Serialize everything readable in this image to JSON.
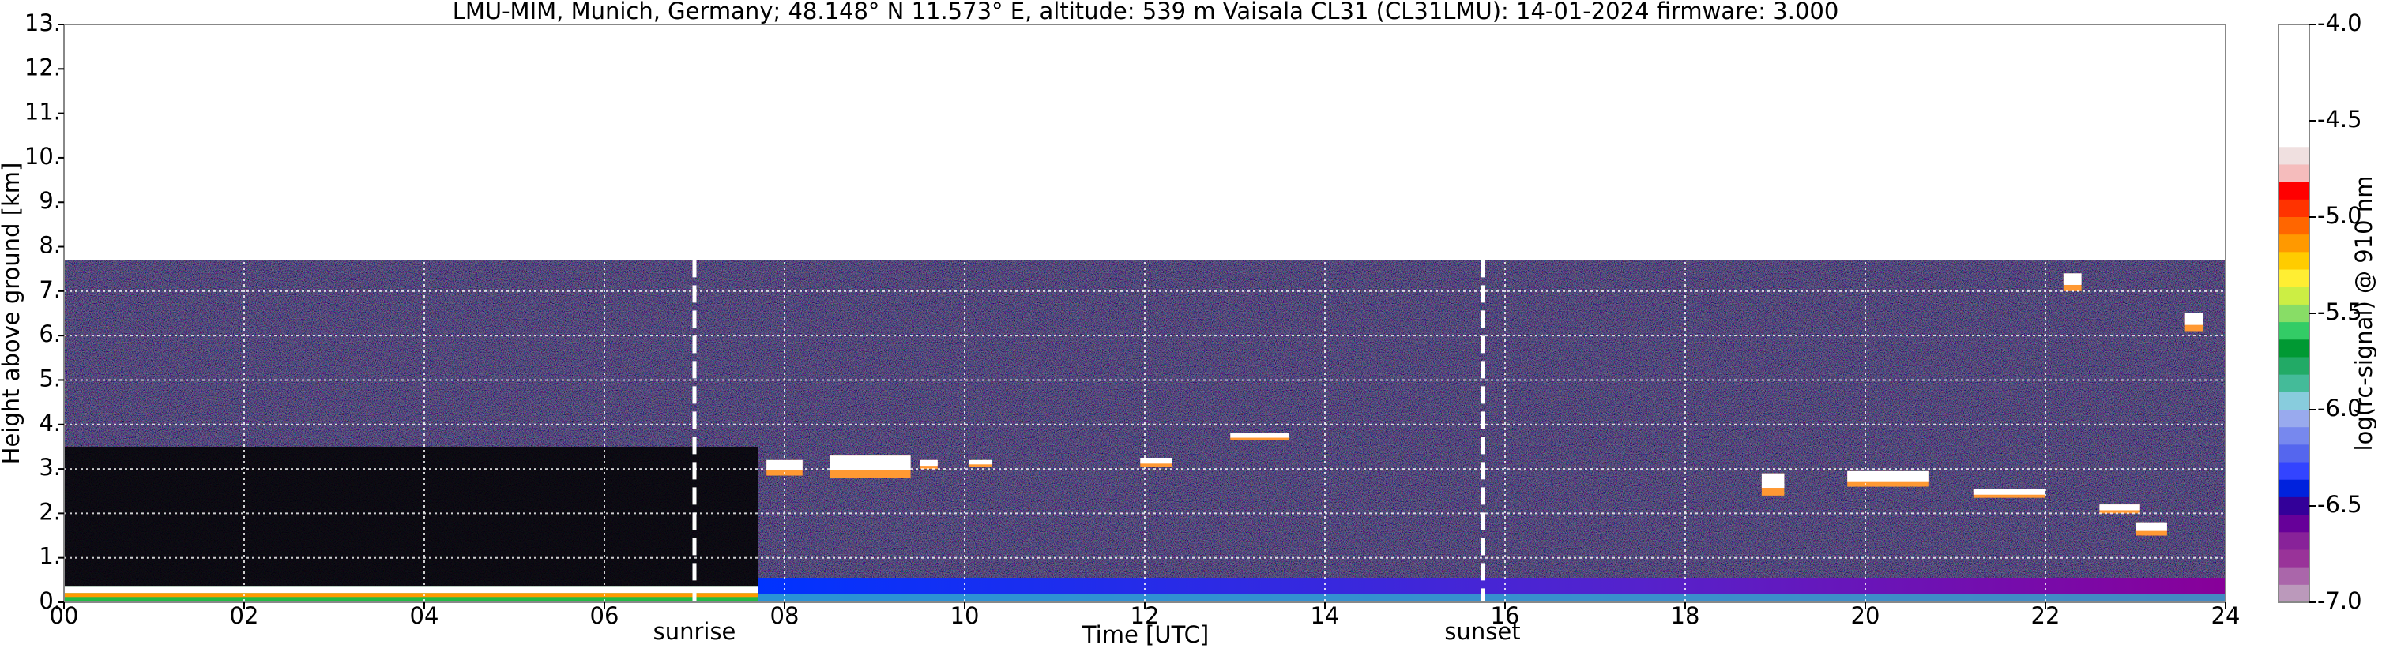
{
  "chart_data": {
    "type": "time-height",
    "title": "LMU-MIM, Munich, Germany; 48.148° N 11.573° E, altitude: 539 m    Vaisala CL31 (CL31LMU): 14-01-2024    firmware: 3.000",
    "xlabel": "Time [UTC]",
    "ylabel": "Height above ground [km]",
    "xlim": [
      0,
      24
    ],
    "xticks": [
      {
        "value": 0,
        "label": "00"
      },
      {
        "value": 2,
        "label": "02"
      },
      {
        "value": 4,
        "label": "04"
      },
      {
        "value": 6,
        "label": "06"
      },
      {
        "value": 8,
        "label": "08"
      },
      {
        "value": 10,
        "label": "10"
      },
      {
        "value": 12,
        "label": "12"
      },
      {
        "value": 14,
        "label": "14"
      },
      {
        "value": 16,
        "label": "16"
      },
      {
        "value": 18,
        "label": "18"
      },
      {
        "value": 20,
        "label": "20"
      },
      {
        "value": 22,
        "label": "22"
      },
      {
        "value": 24,
        "label": "24"
      }
    ],
    "ylim": [
      0,
      13
    ],
    "yticks": [
      {
        "value": 0,
        "label": "0."
      },
      {
        "value": 1,
        "label": "1."
      },
      {
        "value": 2,
        "label": "2."
      },
      {
        "value": 3,
        "label": "3."
      },
      {
        "value": 4,
        "label": "4."
      },
      {
        "value": 5,
        "label": "5."
      },
      {
        "value": 6,
        "label": "6."
      },
      {
        "value": 7,
        "label": "7."
      },
      {
        "value": 8,
        "label": "8."
      },
      {
        "value": 9,
        "label": "9."
      },
      {
        "value": 10,
        "label": "10."
      },
      {
        "value": 11,
        "label": "11."
      },
      {
        "value": 12,
        "label": "12."
      },
      {
        "value": 13,
        "label": "13."
      }
    ],
    "grid": true,
    "signal_top": 7.7,
    "events": [
      {
        "label": "sunrise",
        "x": 7.0
      },
      {
        "label": "sunset",
        "x": 15.75
      }
    ],
    "clouds": [
      {
        "start": 7.8,
        "end": 8.2,
        "base": 2.85,
        "top": 3.2
      },
      {
        "start": 8.5,
        "end": 9.4,
        "base": 2.8,
        "top": 3.3
      },
      {
        "start": 9.5,
        "end": 9.7,
        "base": 3.0,
        "top": 3.2
      },
      {
        "start": 10.05,
        "end": 10.3,
        "base": 3.05,
        "top": 3.2
      },
      {
        "start": 11.95,
        "end": 12.3,
        "base": 3.05,
        "top": 3.25
      },
      {
        "start": 12.95,
        "end": 13.6,
        "base": 3.65,
        "top": 3.8
      },
      {
        "start": 18.85,
        "end": 19.1,
        "base": 2.4,
        "top": 2.9
      },
      {
        "start": 19.8,
        "end": 20.7,
        "base": 2.6,
        "top": 2.95
      },
      {
        "start": 21.2,
        "end": 22.0,
        "base": 2.35,
        "top": 2.55
      },
      {
        "start": 22.6,
        "end": 23.05,
        "base": 2.0,
        "top": 2.2
      },
      {
        "start": 23.0,
        "end": 23.35,
        "base": 1.5,
        "top": 1.8
      },
      {
        "start": 22.2,
        "end": 22.4,
        "base": 7.0,
        "top": 7.4
      },
      {
        "start": 23.55,
        "end": 23.75,
        "base": 6.1,
        "top": 6.5
      }
    ],
    "colorbar": {
      "label": "log(rc-signal) @ 910 nm",
      "lim": [
        -7.0,
        -4.0
      ],
      "ticks": [
        {
          "value": -4.0,
          "label": "-4.0"
        },
        {
          "value": -4.5,
          "label": "-4.5"
        },
        {
          "value": -5.0,
          "label": "-5.0"
        },
        {
          "value": -5.5,
          "label": "-5.5"
        },
        {
          "value": -6.0,
          "label": "-6.0"
        },
        {
          "value": -6.5,
          "label": "-6.5"
        },
        {
          "value": -7.0,
          "label": "-7.0"
        }
      ],
      "colors": [
        "#ffffff",
        "#ffffff",
        "#ffffff",
        "#ffffff",
        "#ffffff",
        "#ffffff",
        "#ffffff",
        "#f0e0e0",
        "#f5bcbc",
        "#ff0000",
        "#ff3300",
        "#ff6600",
        "#ff9900",
        "#ffcc00",
        "#ffee33",
        "#ccee44",
        "#88dd66",
        "#33cc66",
        "#009933",
        "#22aa66",
        "#44bb99",
        "#88ccdd",
        "#99aaee",
        "#7788ee",
        "#5566ee",
        "#3344ff",
        "#0022dd",
        "#330099",
        "#660099",
        "#882299",
        "#993399",
        "#aa66aa",
        "#bb99bb"
      ]
    }
  }
}
